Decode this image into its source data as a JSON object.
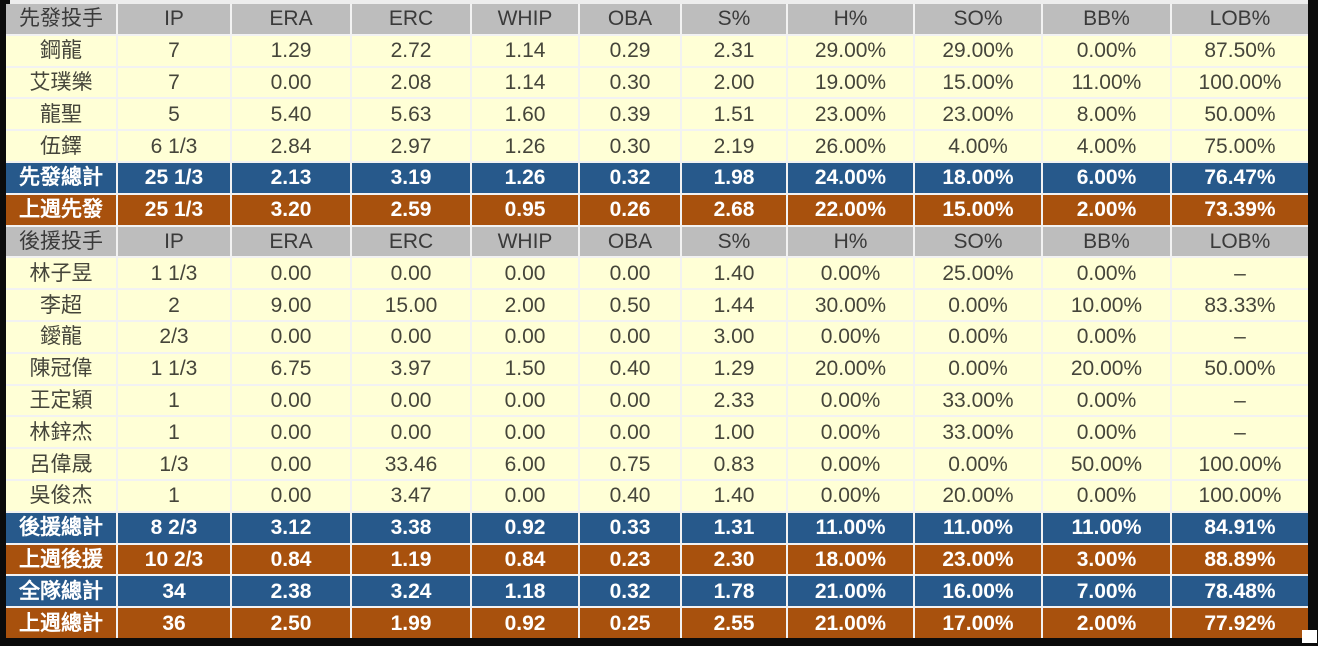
{
  "colors": {
    "header_bg": "#bdbdbd",
    "row_bg": "#ffffd6",
    "total_bg": "#27598b",
    "lastweek_bg": "#a8510d",
    "gridline": "#f2f2f2",
    "body_text": "#45453a",
    "total_text": "#ffffff"
  },
  "chart_data": [
    {
      "type": "table",
      "title": "先發投手",
      "columns": [
        "IP",
        "ERA",
        "ERC",
        "WHIP",
        "OBA",
        "S%",
        "H%",
        "SO%",
        "BB%",
        "LOB%"
      ],
      "rows": [
        {
          "label": "鋼龍",
          "style": "player",
          "values": [
            "7",
            "1.29",
            "2.72",
            "1.14",
            "0.29",
            "2.31",
            "29.00%",
            "29.00%",
            "0.00%",
            "87.50%"
          ]
        },
        {
          "label": "艾璞樂",
          "style": "player",
          "values": [
            "7",
            "0.00",
            "2.08",
            "1.14",
            "0.30",
            "2.00",
            "19.00%",
            "15.00%",
            "11.00%",
            "100.00%"
          ]
        },
        {
          "label": "龍聖",
          "style": "player",
          "values": [
            "5",
            "5.40",
            "5.63",
            "1.60",
            "0.39",
            "1.51",
            "23.00%",
            "23.00%",
            "8.00%",
            "50.00%"
          ]
        },
        {
          "label": "伍鐸",
          "style": "player",
          "values": [
            "6 1/3",
            "2.84",
            "2.97",
            "1.26",
            "0.30",
            "2.19",
            "26.00%",
            "4.00%",
            "4.00%",
            "75.00%"
          ]
        },
        {
          "label": "先發總計",
          "style": "total",
          "values": [
            "25 1/3",
            "2.13",
            "3.19",
            "1.26",
            "0.32",
            "1.98",
            "24.00%",
            "18.00%",
            "6.00%",
            "76.47%"
          ]
        },
        {
          "label": "上週先發",
          "style": "lastweek",
          "values": [
            "25 1/3",
            "3.20",
            "2.59",
            "0.95",
            "0.26",
            "2.68",
            "22.00%",
            "15.00%",
            "2.00%",
            "73.39%"
          ]
        }
      ]
    },
    {
      "type": "table",
      "title": "後援投手",
      "columns": [
        "IP",
        "ERA",
        "ERC",
        "WHIP",
        "OBA",
        "S%",
        "H%",
        "SO%",
        "BB%",
        "LOB%"
      ],
      "rows": [
        {
          "label": "林子昱",
          "style": "player",
          "values": [
            "1 1/3",
            "0.00",
            "0.00",
            "0.00",
            "0.00",
            "1.40",
            "0.00%",
            "25.00%",
            "0.00%",
            "–"
          ]
        },
        {
          "label": "李超",
          "style": "player",
          "values": [
            "2",
            "9.00",
            "15.00",
            "2.00",
            "0.50",
            "1.44",
            "30.00%",
            "0.00%",
            "10.00%",
            "83.33%"
          ]
        },
        {
          "label": "鑀龍",
          "style": "player",
          "values": [
            "2/3",
            "0.00",
            "0.00",
            "0.00",
            "0.00",
            "3.00",
            "0.00%",
            "0.00%",
            "0.00%",
            "–"
          ]
        },
        {
          "label": "陳冠偉",
          "style": "player",
          "values": [
            "1 1/3",
            "6.75",
            "3.97",
            "1.50",
            "0.40",
            "1.29",
            "20.00%",
            "0.00%",
            "20.00%",
            "50.00%"
          ]
        },
        {
          "label": "王定穎",
          "style": "player",
          "values": [
            "1",
            "0.00",
            "0.00",
            "0.00",
            "0.00",
            "2.33",
            "0.00%",
            "33.00%",
            "0.00%",
            "–"
          ]
        },
        {
          "label": "林鋅杰",
          "style": "player",
          "values": [
            "1",
            "0.00",
            "0.00",
            "0.00",
            "0.00",
            "1.00",
            "0.00%",
            "33.00%",
            "0.00%",
            "–"
          ]
        },
        {
          "label": "呂偉晟",
          "style": "player",
          "values": [
            "1/3",
            "0.00",
            "33.46",
            "6.00",
            "0.75",
            "0.83",
            "0.00%",
            "0.00%",
            "50.00%",
            "100.00%"
          ]
        },
        {
          "label": "吳俊杰",
          "style": "player",
          "values": [
            "1",
            "0.00",
            "3.47",
            "0.00",
            "0.40",
            "1.40",
            "0.00%",
            "20.00%",
            "0.00%",
            "100.00%"
          ]
        },
        {
          "label": "後援總計",
          "style": "total",
          "values": [
            "8 2/3",
            "3.12",
            "3.38",
            "0.92",
            "0.33",
            "1.31",
            "11.00%",
            "11.00%",
            "11.00%",
            "84.91%"
          ]
        },
        {
          "label": "上週後援",
          "style": "lastweek",
          "values": [
            "10 2/3",
            "0.84",
            "1.19",
            "0.84",
            "0.23",
            "2.30",
            "18.00%",
            "23.00%",
            "3.00%",
            "88.89%"
          ]
        },
        {
          "label": "全隊總計",
          "style": "total",
          "values": [
            "34",
            "2.38",
            "3.24",
            "1.18",
            "0.32",
            "1.78",
            "21.00%",
            "16.00%",
            "7.00%",
            "78.48%"
          ]
        },
        {
          "label": "上週總計",
          "style": "lastweek",
          "values": [
            "36",
            "2.50",
            "1.99",
            "0.92",
            "0.25",
            "2.55",
            "21.00%",
            "17.00%",
            "2.00%",
            "77.92%"
          ]
        }
      ]
    }
  ]
}
